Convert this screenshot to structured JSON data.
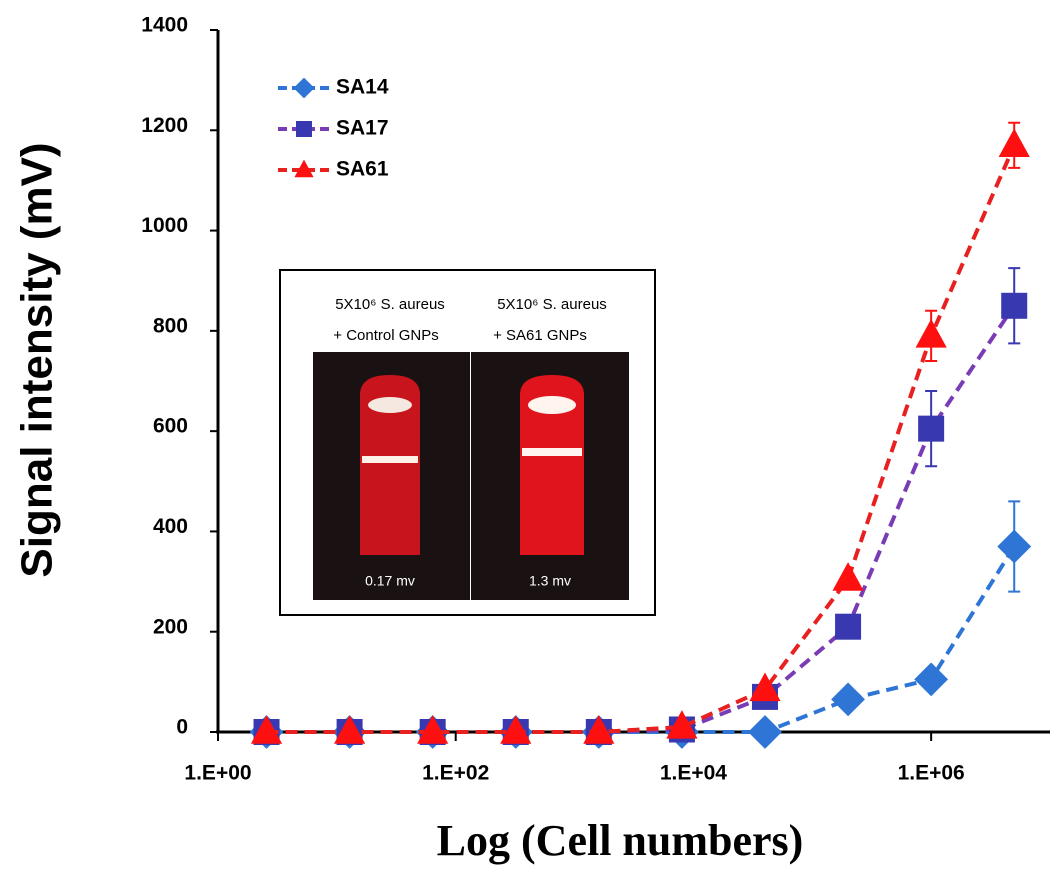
{
  "chart_data": {
    "type": "line",
    "x_label": "Log (Cell numbers)",
    "y_label": "Signal intensity (mV)",
    "x_log": true,
    "x": [
      2.56,
      12.8,
      64,
      320,
      1600,
      8000,
      40000,
      200000,
      1000000,
      5000000
    ],
    "series": [
      {
        "name": "SA14",
        "color": "#2e75d6",
        "line_color": "#2e75d6",
        "marker": "diamond",
        "values": [
          0,
          0,
          0,
          0,
          0,
          0,
          0,
          65,
          105,
          370
        ],
        "errors": [
          null,
          null,
          null,
          null,
          null,
          null,
          null,
          null,
          null,
          90
        ]
      },
      {
        "name": "SA17",
        "color": "#3838b0",
        "line_color": "#7a3cb4",
        "marker": "square",
        "values": [
          0,
          0,
          0,
          0,
          0,
          5,
          70,
          210,
          605,
          850
        ],
        "errors": [
          null,
          null,
          null,
          null,
          null,
          null,
          null,
          null,
          75,
          75
        ]
      },
      {
        "name": "SA61",
        "color": "#ff1010",
        "line_color": "#e82020",
        "marker": "triangle",
        "values": [
          0,
          0,
          0,
          0,
          0,
          10,
          85,
          305,
          790,
          1170
        ],
        "errors": [
          null,
          null,
          null,
          null,
          null,
          null,
          null,
          null,
          50,
          45
        ]
      }
    ],
    "xlim": [
      1,
      10000000
    ],
    "xticks": [
      {
        "value": 1,
        "label": "1.E+00"
      },
      {
        "value": 100,
        "label": "1.E+02"
      },
      {
        "value": 10000,
        "label": "1.E+04"
      },
      {
        "value": 1000000,
        "label": "1.E+06"
      }
    ],
    "ylim": [
      0,
      1400
    ],
    "yticks": [
      0,
      200,
      400,
      600,
      800,
      1000,
      1200,
      1400
    ],
    "legend": "upper left",
    "inset": {
      "left_title": "5X10⁶ S. aureus",
      "left_sub": "+ Control GNPs",
      "left_reading": "0.17 mv",
      "right_title": "5X10⁶ S. aureus",
      "right_sub": "+ SA61 GNPs",
      "right_reading": "1.3 mv"
    }
  }
}
